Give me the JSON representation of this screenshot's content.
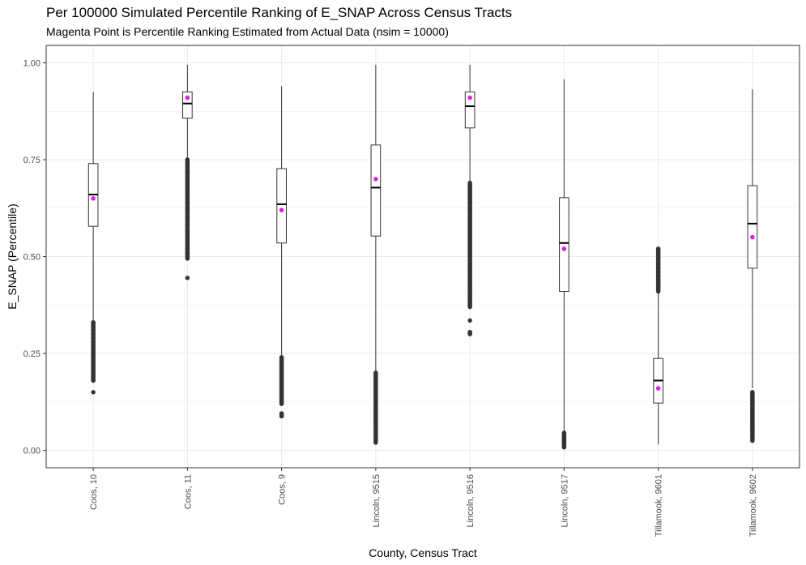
{
  "chart_data": {
    "type": "box",
    "title": "Per 100000 Simulated Percentile Ranking of E_SNAP Across Census Tracts",
    "subtitle": "Magenta Point is Percentile Ranking Estimated from Actual Data (nsim = 10000)",
    "xlabel": "County, Census Tract",
    "ylabel": "E_SNAP (Percentile)",
    "ylim": [
      -0.045,
      1.045
    ],
    "yticks": [
      0.0,
      0.25,
      0.5,
      0.75,
      1.0
    ],
    "ytick_labels": [
      "0.00",
      "0.25",
      "0.50",
      "0.75",
      "1.00"
    ],
    "grid": true,
    "categories": [
      "Coos, 10",
      "Coos, 11",
      "Coos, 9",
      "Lincoln, 9515",
      "Lincoln, 9516",
      "Lincoln, 9517",
      "Tillamook, 9601",
      "Tillamook, 9602"
    ],
    "boxes": [
      {
        "whisker_low": 0.335,
        "q1": 0.578,
        "median": 0.66,
        "q3": 0.74,
        "whisker_high": 0.925,
        "actual": 0.65,
        "outliers_low": [
          0.15,
          0.18,
          0.19,
          0.2,
          0.22,
          0.24,
          0.25,
          0.26,
          0.27,
          0.28,
          0.29,
          0.3,
          0.31,
          0.32,
          0.33
        ],
        "outliers_high": []
      },
      {
        "whisker_low": 0.755,
        "q1": 0.857,
        "median": 0.895,
        "q3": 0.925,
        "whisker_high": 0.995,
        "actual": 0.91,
        "outliers_low": [
          0.445,
          0.495,
          0.51,
          0.52,
          0.535,
          0.55,
          0.565,
          0.58,
          0.6,
          0.62,
          0.64,
          0.66,
          0.68,
          0.7,
          0.72,
          0.74,
          0.75
        ],
        "outliers_high": []
      },
      {
        "whisker_low": 0.245,
        "q1": 0.535,
        "median": 0.635,
        "q3": 0.727,
        "whisker_high": 0.94,
        "actual": 0.62,
        "outliers_low": [
          0.088,
          0.095,
          0.12,
          0.13,
          0.14,
          0.16,
          0.17,
          0.18,
          0.19,
          0.2,
          0.21,
          0.22,
          0.23,
          0.24
        ],
        "outliers_high": []
      },
      {
        "whisker_low": 0.205,
        "q1": 0.553,
        "median": 0.678,
        "q3": 0.788,
        "whisker_high": 0.995,
        "actual": 0.7,
        "outliers_low": [
          0.02,
          0.03,
          0.05,
          0.07,
          0.08,
          0.09,
          0.1,
          0.11,
          0.12,
          0.13,
          0.14,
          0.15,
          0.16,
          0.17,
          0.18,
          0.19,
          0.2
        ],
        "outliers_high": []
      },
      {
        "whisker_low": 0.695,
        "q1": 0.832,
        "median": 0.888,
        "q3": 0.925,
        "whisker_high": 0.995,
        "actual": 0.91,
        "outliers_low": [
          0.3,
          0.305,
          0.335,
          0.37,
          0.385,
          0.4,
          0.41,
          0.43,
          0.44,
          0.46,
          0.48,
          0.5,
          0.52,
          0.54,
          0.56,
          0.58,
          0.6,
          0.62,
          0.64,
          0.66,
          0.68,
          0.69
        ],
        "outliers_high": []
      },
      {
        "whisker_low": 0.05,
        "q1": 0.41,
        "median": 0.535,
        "q3": 0.652,
        "whisker_high": 0.958,
        "actual": 0.52,
        "outliers_low": [
          0.008,
          0.015,
          0.02,
          0.025,
          0.03,
          0.035,
          0.04,
          0.045
        ],
        "outliers_high": []
      },
      {
        "whisker_low": 0.015,
        "q1": 0.122,
        "median": 0.18,
        "q3": 0.237,
        "whisker_high": 0.405,
        "actual": 0.16,
        "outliers_low": [],
        "outliers_high": [
          0.41,
          0.42,
          0.43,
          0.44,
          0.45,
          0.46,
          0.47,
          0.48,
          0.495,
          0.51,
          0.52
        ]
      },
      {
        "whisker_low": 0.16,
        "q1": 0.47,
        "median": 0.585,
        "q3": 0.683,
        "whisker_high": 0.932,
        "actual": 0.55,
        "outliers_low": [
          0.025,
          0.035,
          0.05,
          0.06,
          0.07,
          0.08,
          0.09,
          0.1,
          0.11,
          0.12,
          0.13,
          0.14,
          0.15
        ],
        "outliers_high": []
      }
    ],
    "colors": {
      "actual_point": "#e020e0",
      "outlier": "#333333",
      "box_stroke": "#333333",
      "grid": "#ebebeb",
      "panel_border": "#333333"
    }
  }
}
